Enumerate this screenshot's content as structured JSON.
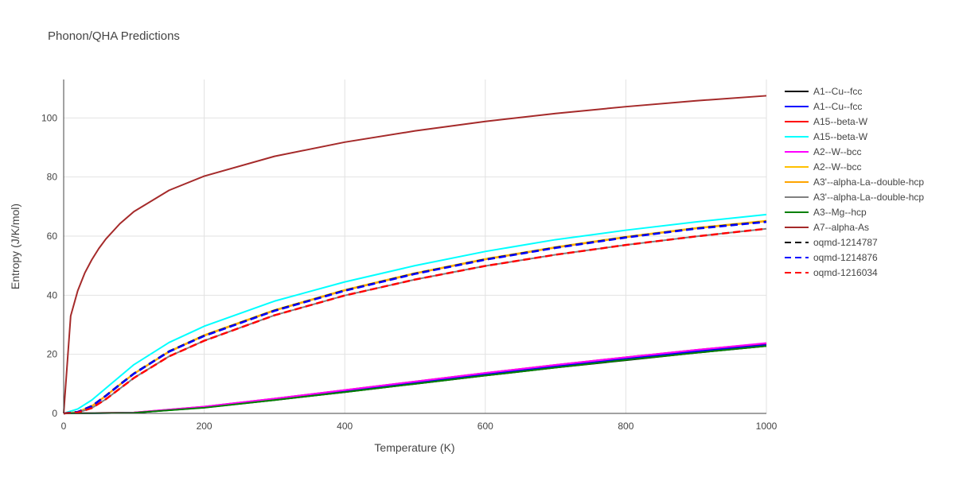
{
  "chart_data": {
    "type": "line",
    "title": "Phonon/QHA Predictions",
    "xlabel": "Temperature (K)",
    "ylabel": "Entropy (J/K/mol)",
    "xlim": [
      0,
      1000
    ],
    "ylim": [
      0,
      113
    ],
    "xticks": [
      0,
      200,
      400,
      600,
      800,
      1000
    ],
    "yticks": [
      0,
      20,
      40,
      60,
      80,
      100
    ],
    "grid": true,
    "legend_position": "right",
    "series": [
      {
        "name": "A1--Cu--fcc",
        "color": "#000000",
        "dash": "solid",
        "x": [
          0,
          100,
          200,
          300,
          400,
          500,
          600,
          700,
          800,
          900,
          1000
        ],
        "y": [
          0,
          0.2,
          2.0,
          4.5,
          7.2,
          10.0,
          12.8,
          15.5,
          18.0,
          20.5,
          22.8
        ]
      },
      {
        "name": "A1--Cu--fcc",
        "color": "#0000ff",
        "dash": "solid",
        "x": [
          0,
          100,
          200,
          300,
          400,
          500,
          600,
          700,
          800,
          900,
          1000
        ],
        "y": [
          0,
          0.2,
          2.1,
          4.7,
          7.5,
          10.4,
          13.2,
          15.9,
          18.5,
          21.0,
          23.3
        ]
      },
      {
        "name": "A15--beta-W",
        "color": "#ff0000",
        "dash": "solid",
        "x": [
          0,
          100,
          200,
          300,
          400,
          500,
          600,
          700,
          800,
          900,
          1000
        ],
        "y": [
          0,
          0.3,
          2.3,
          5.0,
          7.9,
          10.8,
          13.7,
          16.4,
          19.0,
          21.5,
          23.7
        ]
      },
      {
        "name": "A15--beta-W",
        "color": "#00ffff",
        "dash": "solid",
        "x": [
          0,
          20,
          40,
          60,
          80,
          100,
          150,
          200,
          300,
          400,
          500,
          600,
          700,
          800,
          900,
          1000
        ],
        "y": [
          0,
          1.5,
          4.5,
          8.5,
          12.5,
          16.5,
          24.0,
          29.5,
          38.0,
          44.5,
          50.0,
          54.8,
          58.8,
          62.0,
          64.8,
          67.3
        ]
      },
      {
        "name": "A2--W--bcc",
        "color": "#ff00ff",
        "dash": "solid",
        "x": [
          0,
          100,
          200,
          300,
          400,
          500,
          600,
          700,
          800,
          900,
          1000
        ],
        "y": [
          0,
          0.3,
          2.3,
          5.0,
          7.9,
          10.8,
          13.7,
          16.4,
          19.0,
          21.5,
          23.8
        ]
      },
      {
        "name": "A2--W--bcc",
        "color": "#ffc000",
        "dash": "solid",
        "x": [
          0,
          20,
          40,
          60,
          80,
          100,
          150,
          200,
          300,
          400,
          500,
          600,
          700,
          800,
          900,
          1000
        ],
        "y": [
          0,
          0.5,
          2.5,
          6.0,
          9.8,
          13.5,
          21.0,
          26.5,
          35.0,
          41.8,
          47.5,
          52.3,
          56.3,
          59.8,
          62.8,
          65.2
        ]
      },
      {
        "name": "A3'--alpha-La--double-hcp",
        "color": "#ffa500",
        "dash": "solid",
        "x": [
          0,
          20,
          40,
          60,
          80,
          100,
          150,
          200,
          300,
          400,
          500,
          600,
          700,
          800,
          900,
          1000
        ],
        "y": [
          0,
          0.5,
          2.4,
          5.9,
          9.7,
          13.4,
          20.8,
          26.3,
          34.8,
          41.6,
          47.3,
          52.1,
          56.1,
          59.6,
          62.6,
          65.0
        ]
      },
      {
        "name": "A3'--alpha-La--double-hcp",
        "color": "#808080",
        "dash": "solid",
        "x": [
          0,
          20,
          40,
          60,
          80,
          100,
          150,
          200,
          300,
          400,
          500,
          600,
          700,
          800,
          900,
          1000
        ],
        "y": [
          0,
          0.3,
          1.8,
          4.8,
          8.4,
          12.0,
          19.3,
          24.6,
          33.2,
          39.9,
          45.3,
          49.9,
          53.7,
          57.0,
          59.9,
          62.5
        ]
      },
      {
        "name": "A3--Mg--hcp",
        "color": "#008000",
        "dash": "solid",
        "x": [
          0,
          100,
          200,
          300,
          400,
          500,
          600,
          700,
          800,
          900,
          1000
        ],
        "y": [
          0,
          0.2,
          1.9,
          4.5,
          7.2,
          10.0,
          12.8,
          15.5,
          18.1,
          20.5,
          22.8
        ]
      },
      {
        "name": "A7--alpha-As",
        "color": "#a52a2a",
        "dash": "solid",
        "x": [
          0,
          10,
          20,
          30,
          40,
          50,
          60,
          80,
          100,
          150,
          200,
          300,
          400,
          500,
          600,
          700,
          800,
          900,
          1000
        ],
        "y": [
          0,
          33,
          41.5,
          47.5,
          52.0,
          55.8,
          59.0,
          64.2,
          68.3,
          75.5,
          80.3,
          87.0,
          91.8,
          95.6,
          98.8,
          101.5,
          103.8,
          105.8,
          107.5
        ]
      },
      {
        "name": "oqmd-1214787",
        "color": "#000000",
        "dash": "dash",
        "x": [
          0,
          20,
          40,
          60,
          80,
          100,
          150,
          200,
          300,
          400,
          500,
          600,
          700,
          800,
          900,
          1000
        ],
        "y": [
          0,
          0.5,
          2.5,
          6.0,
          9.8,
          13.5,
          21.0,
          26.3,
          34.8,
          41.6,
          47.3,
          52.1,
          56.1,
          59.6,
          62.6,
          64.9
        ]
      },
      {
        "name": "oqmd-1214876",
        "color": "#0000ff",
        "dash": "dash",
        "x": [
          0,
          20,
          40,
          60,
          80,
          100,
          150,
          200,
          300,
          400,
          500,
          600,
          700,
          800,
          900,
          1000
        ],
        "y": [
          0,
          0.5,
          2.4,
          5.9,
          9.7,
          13.4,
          20.9,
          26.2,
          34.7,
          41.5,
          47.2,
          52.0,
          56.0,
          59.5,
          62.5,
          64.8
        ]
      },
      {
        "name": "oqmd-1216034",
        "color": "#ff0000",
        "dash": "dash",
        "x": [
          0,
          20,
          40,
          60,
          80,
          100,
          150,
          200,
          300,
          400,
          500,
          600,
          700,
          800,
          900,
          1000
        ],
        "y": [
          0,
          0.3,
          1.8,
          4.8,
          8.4,
          12.0,
          19.3,
          24.6,
          33.2,
          39.9,
          45.3,
          49.9,
          53.7,
          57.0,
          59.9,
          62.5
        ]
      }
    ]
  }
}
